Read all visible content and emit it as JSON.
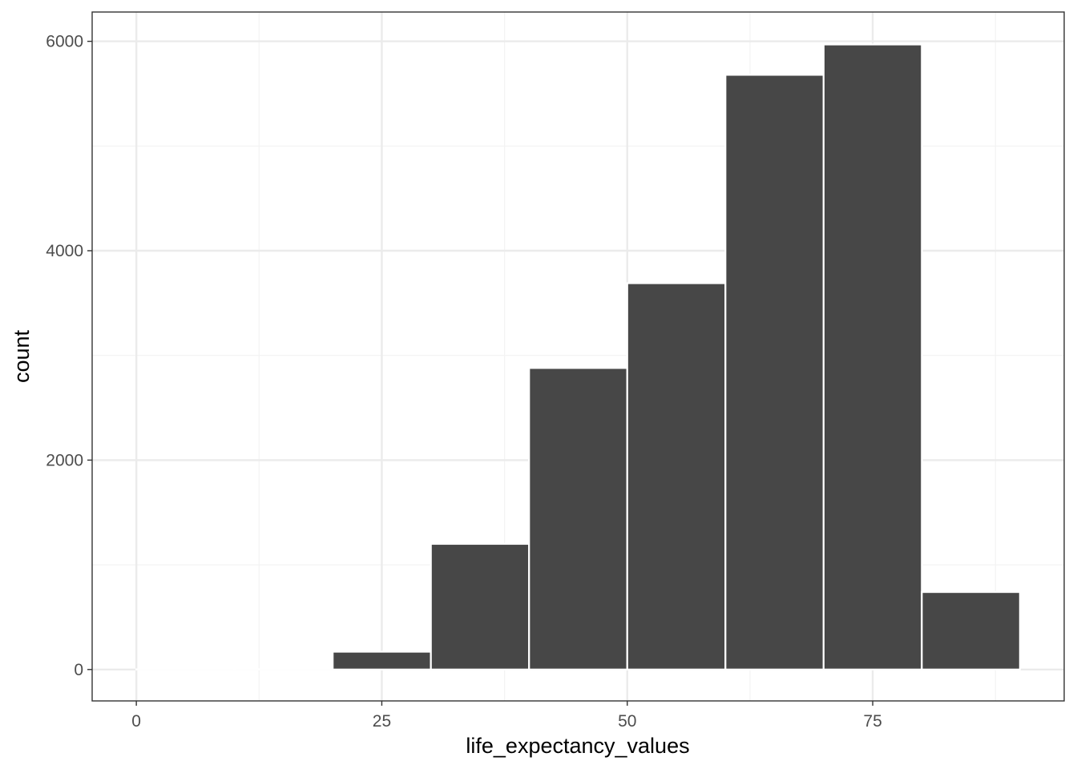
{
  "chart_data": {
    "type": "bar",
    "subtype": "histogram",
    "xlabel": "life_expectancy_values",
    "ylabel": "count",
    "xlim": [
      -4.5,
      94.5
    ],
    "ylim": [
      -300,
      6280
    ],
    "x_ticks": [
      0,
      25,
      50,
      75
    ],
    "y_ticks": [
      0,
      2000,
      4000,
      6000
    ],
    "x_minor_grid": [
      12.5,
      37.5,
      62.5,
      87.5
    ],
    "y_minor_grid": [
      1000,
      3000,
      5000
    ],
    "grid": true,
    "bins": [
      {
        "x0": 0,
        "x1": 10,
        "count": 2
      },
      {
        "x0": 10,
        "x1": 20,
        "count": 3
      },
      {
        "x0": 20,
        "x1": 30,
        "count": 170
      },
      {
        "x0": 30,
        "x1": 40,
        "count": 1200
      },
      {
        "x0": 40,
        "x1": 50,
        "count": 2880
      },
      {
        "x0": 50,
        "x1": 60,
        "count": 3690
      },
      {
        "x0": 60,
        "x1": 70,
        "count": 5680
      },
      {
        "x0": 70,
        "x1": 80,
        "count": 5970
      },
      {
        "x0": 80,
        "x1": 90,
        "count": 740
      }
    ],
    "colors": {
      "bar_fill": "#474747",
      "bar_outline": "#ffffff",
      "grid_major": "#ebebeb",
      "grid_minor": "#f3f3f3",
      "panel_border": "#333333",
      "tick_text": "#4d4d4d"
    }
  }
}
